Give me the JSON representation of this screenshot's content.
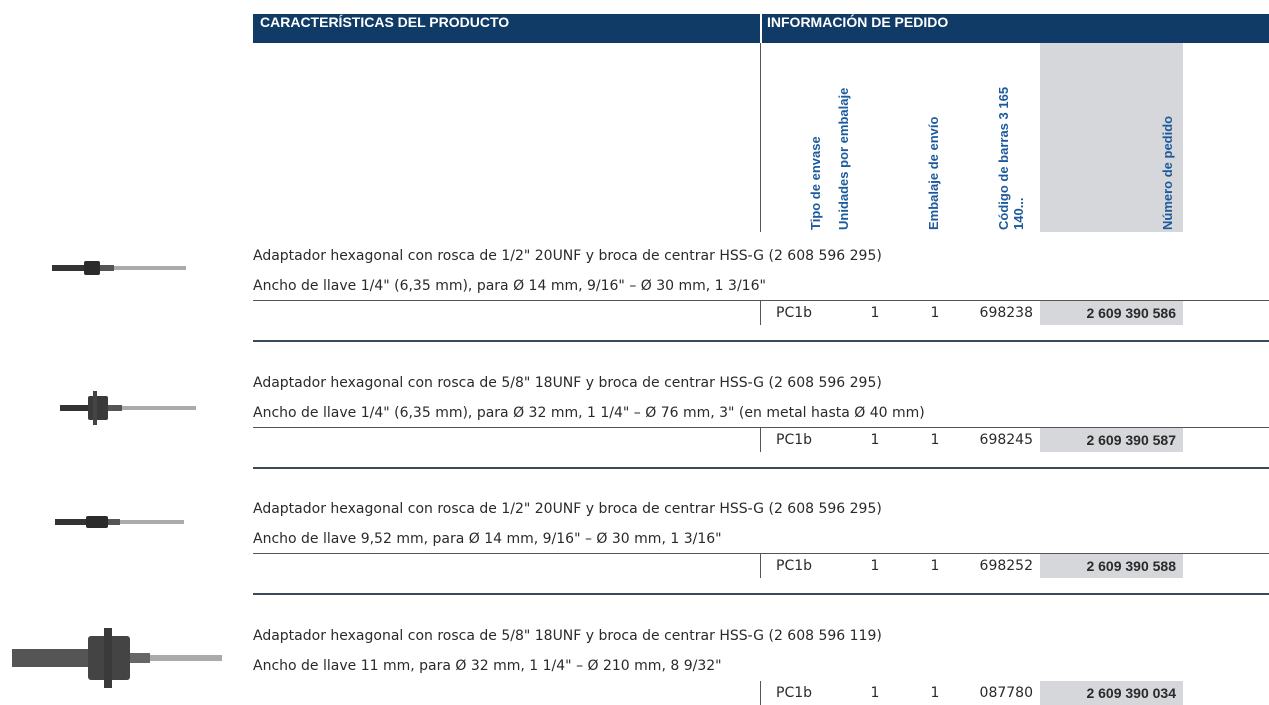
{
  "header": {
    "left_title": "CARACTERÍSTICAS DEL PRODUCTO",
    "right_title": "INFORMACIÓN DE PEDIDO"
  },
  "columns": [
    "Tipo de envase",
    "Unidades por embalaje",
    "Embalaje de envío",
    "Código de barras 3 165 140...",
    "Número de pedido"
  ],
  "products": [
    {
      "line1": "Adaptador hexagonal con rosca de 1/2\" 20UNF y broca de centrar HSS-G (2 608 596 295)",
      "line2": "Ancho de llave 1/4\" (6,35 mm), para Ø 14 mm, 9/16\" – Ø 30 mm, 1 3/16\"",
      "cells": [
        "PC1b",
        "1",
        "1",
        "698238",
        "2 609 390 586"
      ]
    },
    {
      "line1": "Adaptador hexagonal con rosca de 5/8\" 18UNF y broca de centrar HSS-G (2 608 596 295)",
      "line2": "Ancho de llave 1/4\" (6,35 mm), para Ø 32 mm, 1 1/4\" – Ø 76 mm, 3\" (en metal hasta Ø 40 mm)",
      "cells": [
        "PC1b",
        "1",
        "1",
        "698245",
        "2 609 390 587"
      ]
    },
    {
      "line1": "Adaptador hexagonal con rosca de 1/2\" 20UNF y broca de centrar HSS-G (2 608 596 295)",
      "line2": "Ancho de llave 9,52 mm, para Ø 14 mm, 9/16\" – Ø 30 mm, 1 3/16\"",
      "cells": [
        "PC1b",
        "1",
        "1",
        "698252",
        "2 609 390 588"
      ]
    },
    {
      "line1": "Adaptador hexagonal con rosca de 5/8\" 18UNF y broca de centrar HSS-G (2 608 596 119)",
      "line2": "Ancho de llave 11 mm, para Ø 32 mm, 1 1/4\" – Ø 210 mm, 8 9/32\"",
      "cells": [
        "PC1b",
        "1",
        "1",
        "087780",
        "2 609 390 034"
      ]
    }
  ]
}
